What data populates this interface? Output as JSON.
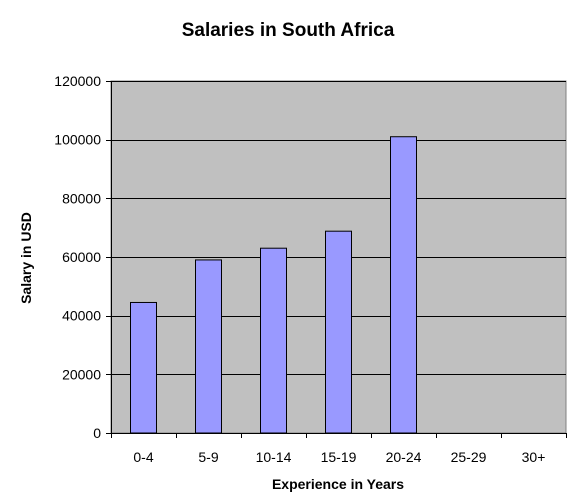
{
  "chart_data": {
    "type": "bar",
    "title": "Salaries in South Africa",
    "xlabel": "Experience in Years",
    "ylabel": "Salary in USD",
    "categories": [
      "0-4",
      "5-9",
      "10-14",
      "15-19",
      "20-24",
      "25-29",
      "30+"
    ],
    "values": [
      44500,
      59000,
      63000,
      68800,
      101000,
      0,
      0
    ],
    "ylim": [
      0,
      120000
    ],
    "yticks": [
      0,
      20000,
      40000,
      60000,
      80000,
      100000,
      120000
    ],
    "ytick_labels": [
      "0",
      "20000",
      "40000",
      "60000",
      "80000",
      "100000",
      "120000"
    ],
    "grid": true,
    "legend": "none",
    "colors": {
      "plot_background": "#c0c0c0",
      "bar_fill": "#9999ff",
      "bar_stroke": "#000000",
      "gridline": "#000000"
    }
  }
}
